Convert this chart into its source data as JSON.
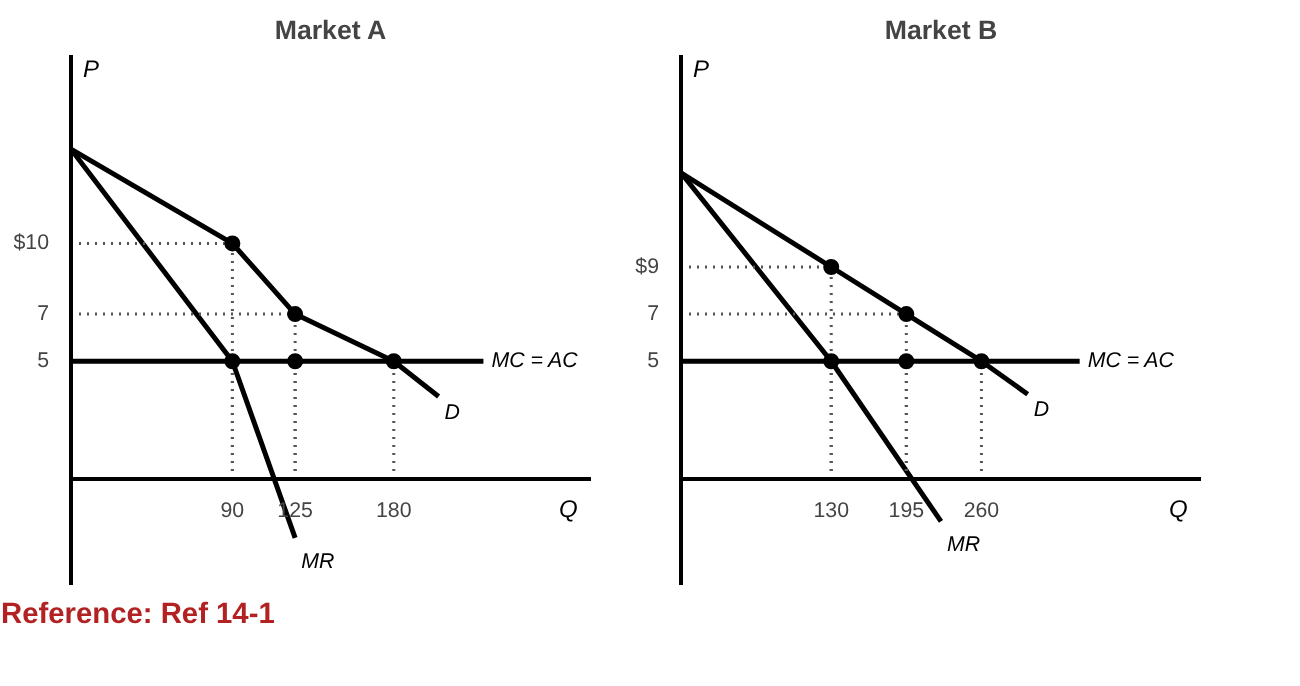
{
  "chart_data": [
    {
      "type": "line",
      "title": "Market A",
      "xlabel": "Q",
      "ylabel": "P",
      "xlim": [
        0,
        290
      ],
      "ylim": [
        -4.5,
        18
      ],
      "xticks": [
        90,
        125,
        180
      ],
      "yticks": [
        5,
        7,
        {
          "value": 10,
          "label": "$10"
        }
      ],
      "marker": "none",
      "annotations": [
        "Reference: Ref 14-1"
      ],
      "series": [
        {
          "name": "D",
          "color": "#000000",
          "x": [
            0,
            90,
            125,
            180,
            205
          ],
          "values": [
            14,
            10,
            7,
            5,
            3.5
          ]
        },
        {
          "name": "MR",
          "color": "#000000",
          "x": [
            0,
            90,
            125
          ],
          "values": [
            14,
            5,
            -2.5
          ]
        },
        {
          "name": "MC = AC",
          "color": "#000000",
          "x": [
            0,
            230
          ],
          "values": [
            5,
            5
          ]
        },
        {
          "type": "scatter",
          "color": "#000000",
          "marker": "circle",
          "x": [
            90,
            125,
            90,
            125,
            180
          ],
          "values": [
            10,
            7,
            5,
            5,
            5
          ],
          "errors": [
            [
              10,
              0
            ],
            [
              7,
              0
            ],
            [
              5,
              0
            ],
            [
              5,
              0
            ],
            [
              5,
              0
            ]
          ],
          "xerrors": [
            [
              90,
              0
            ],
            [
              125,
              0
            ],
            null,
            null,
            null
          ]
        }
      ]
    },
    {
      "type": "line",
      "title": "Market B",
      "xlabel": "Q",
      "ylabel": "P",
      "xlim": [
        0,
        450
      ],
      "ylim": [
        -4.5,
        18
      ],
      "xticks": [
        130,
        195,
        260
      ],
      "yticks": [
        5,
        7,
        {
          "value": 9,
          "label": "$9"
        }
      ],
      "marker": "none",
      "series": [
        {
          "name": "D",
          "color": "#000000",
          "x": [
            0,
            130,
            195,
            260,
            300
          ],
          "values": [
            13,
            9,
            7,
            5,
            3.6
          ]
        },
        {
          "name": "MR",
          "color": "#000000",
          "x": [
            0,
            130,
            225
          ],
          "values": [
            13,
            5,
            -1.8
          ]
        },
        {
          "name": "MC = AC",
          "color": "#000000",
          "x": [
            0,
            345
          ],
          "values": [
            5,
            5
          ]
        },
        {
          "type": "scatter",
          "color": "#000000",
          "marker": "circle",
          "x": [
            130,
            195,
            130,
            195,
            260
          ],
          "values": [
            9,
            7,
            5,
            5,
            5
          ],
          "errors": [
            [
              9,
              0
            ],
            [
              7,
              0
            ],
            [
              5,
              0
            ],
            [
              5,
              0
            ],
            [
              5,
              0
            ]
          ],
          "xerrors": [
            [
              130,
              0
            ],
            [
              195,
              0
            ],
            null,
            null,
            null
          ]
        }
      ]
    }
  ]
}
